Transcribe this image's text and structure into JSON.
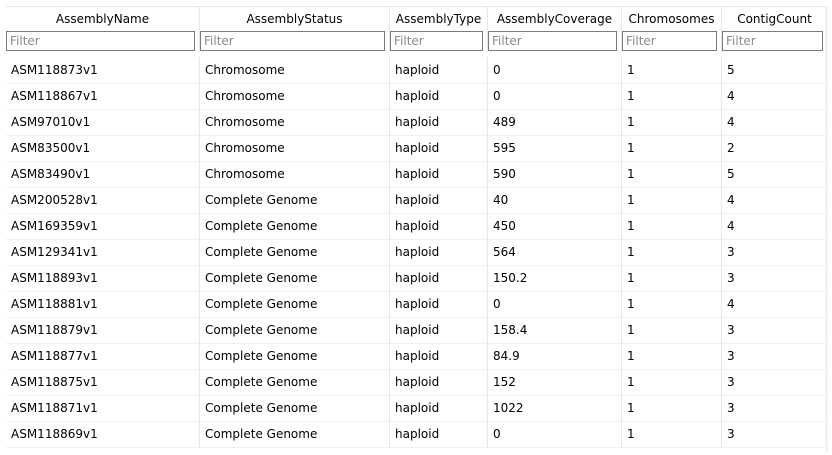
{
  "table": {
    "columns": [
      "AssemblyName",
      "AssemblyStatus",
      "AssemblyType",
      "AssemblyCoverage",
      "Chromosomes",
      "ContigCount"
    ],
    "sort_icon": "^",
    "filter_placeholder": "Filter",
    "rows": [
      [
        "ASM118873v1",
        "Chromosome",
        "haploid",
        "0",
        "1",
        "5"
      ],
      [
        "ASM118867v1",
        "Chromosome",
        "haploid",
        "0",
        "1",
        "4"
      ],
      [
        "ASM97010v1",
        "Chromosome",
        "haploid",
        "489",
        "1",
        "4"
      ],
      [
        "ASM83500v1",
        "Chromosome",
        "haploid",
        "595",
        "1",
        "2"
      ],
      [
        "ASM83490v1",
        "Chromosome",
        "haploid",
        "590",
        "1",
        "5"
      ],
      [
        "ASM200528v1",
        "Complete Genome",
        "haploid",
        "40",
        "1",
        "4"
      ],
      [
        "ASM169359v1",
        "Complete Genome",
        "haploid",
        "450",
        "1",
        "4"
      ],
      [
        "ASM129341v1",
        "Complete Genome",
        "haploid",
        "564",
        "1",
        "3"
      ],
      [
        "ASM118893v1",
        "Complete Genome",
        "haploid",
        "150.2",
        "1",
        "3"
      ],
      [
        "ASM118881v1",
        "Complete Genome",
        "haploid",
        "0",
        "1",
        "4"
      ],
      [
        "ASM118879v1",
        "Complete Genome",
        "haploid",
        "158.4",
        "1",
        "3"
      ],
      [
        "ASM118877v1",
        "Complete Genome",
        "haploid",
        "84.9",
        "1",
        "3"
      ],
      [
        "ASM118875v1",
        "Complete Genome",
        "haploid",
        "152",
        "1",
        "3"
      ],
      [
        "ASM118871v1",
        "Complete Genome",
        "haploid",
        "1022",
        "1",
        "3"
      ],
      [
        "ASM118869v1",
        "Complete Genome",
        "haploid",
        "0",
        "1",
        "3"
      ]
    ]
  }
}
